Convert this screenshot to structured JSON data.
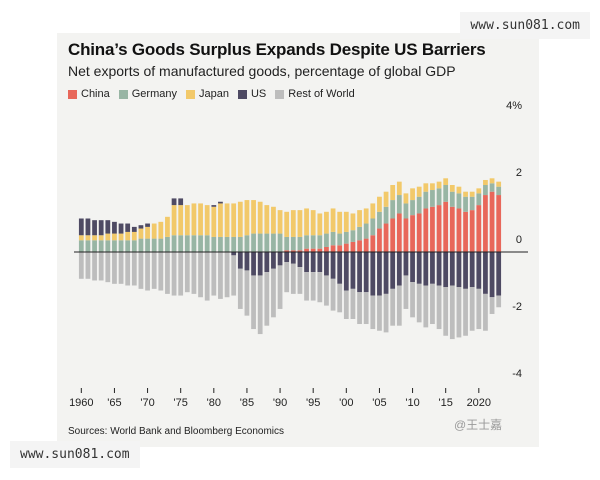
{
  "chart_data": {
    "type": "bar",
    "stacked": true,
    "title": "China’s Goods Surplus Expands Despite US Barriers",
    "subtitle": "Net exports of manufactured goods, percentage of global GDP",
    "source": "Sources: World Bank and Bloomberg Economics",
    "ylim": [
      -4,
      4
    ],
    "y_ticks": [
      "4%",
      "2",
      "0",
      "-2",
      "-4"
    ],
    "x_tick_labels": [
      "1960",
      "'65",
      "'70",
      "'75",
      "'80",
      "'85",
      "'90",
      "'95",
      "'00",
      "'05",
      "'10",
      "'15",
      "2020"
    ],
    "years": [
      1960,
      1961,
      1962,
      1963,
      1964,
      1965,
      1966,
      1967,
      1968,
      1969,
      1970,
      1971,
      1972,
      1973,
      1974,
      1975,
      1976,
      1977,
      1978,
      1979,
      1980,
      1981,
      1982,
      1983,
      1984,
      1985,
      1986,
      1987,
      1988,
      1989,
      1990,
      1991,
      1992,
      1993,
      1994,
      1995,
      1996,
      1997,
      1998,
      1999,
      2000,
      2001,
      2002,
      2003,
      2004,
      2005,
      2006,
      2007,
      2008,
      2009,
      2010,
      2011,
      2012,
      2013,
      2014,
      2015,
      2016,
      2017,
      2018,
      2019,
      2020,
      2021,
      2022,
      2023
    ],
    "series": [
      {
        "name": "China",
        "color": "#e8675a",
        "values": [
          0,
          0,
          0,
          0,
          0,
          0,
          0,
          0,
          0,
          0,
          0,
          0,
          0,
          0,
          0,
          0,
          0,
          0,
          0,
          0,
          0,
          0,
          0,
          0,
          0,
          0,
          0,
          0,
          0,
          0,
          0,
          0.05,
          0.05,
          0.05,
          0.1,
          0.1,
          0.1,
          0.15,
          0.2,
          0.2,
          0.25,
          0.3,
          0.35,
          0.4,
          0.5,
          0.7,
          0.85,
          1.0,
          1.15,
          1.0,
          1.1,
          1.15,
          1.3,
          1.35,
          1.4,
          1.5,
          1.35,
          1.3,
          1.2,
          1.25,
          1.4,
          1.7,
          1.8,
          1.7
        ]
      },
      {
        "name": "Germany",
        "color": "#98b5a4",
        "values": [
          0.35,
          0.35,
          0.35,
          0.35,
          0.35,
          0.35,
          0.35,
          0.35,
          0.35,
          0.4,
          0.4,
          0.4,
          0.4,
          0.45,
          0.5,
          0.5,
          0.5,
          0.5,
          0.5,
          0.5,
          0.45,
          0.45,
          0.45,
          0.45,
          0.45,
          0.5,
          0.55,
          0.55,
          0.55,
          0.55,
          0.55,
          0.4,
          0.4,
          0.4,
          0.4,
          0.4,
          0.4,
          0.4,
          0.4,
          0.35,
          0.35,
          0.35,
          0.4,
          0.45,
          0.5,
          0.5,
          0.5,
          0.55,
          0.55,
          0.45,
          0.45,
          0.5,
          0.5,
          0.5,
          0.5,
          0.5,
          0.45,
          0.45,
          0.45,
          0.4,
          0.35,
          0.3,
          0.25,
          0.25
        ]
      },
      {
        "name": "Japan",
        "color": "#f2c96a",
        "values": [
          0.15,
          0.15,
          0.15,
          0.15,
          0.2,
          0.2,
          0.2,
          0.25,
          0.25,
          0.3,
          0.35,
          0.45,
          0.5,
          0.6,
          0.9,
          0.9,
          0.9,
          0.95,
          0.95,
          0.9,
          0.9,
          1.0,
          1.0,
          1.0,
          1.05,
          1.05,
          1.0,
          0.95,
          0.85,
          0.8,
          0.7,
          0.75,
          0.8,
          0.8,
          0.8,
          0.75,
          0.65,
          0.65,
          0.7,
          0.65,
          0.6,
          0.5,
          0.5,
          0.45,
          0.45,
          0.45,
          0.45,
          0.45,
          0.4,
          0.3,
          0.35,
          0.3,
          0.25,
          0.2,
          0.2,
          0.2,
          0.2,
          0.2,
          0.15,
          0.15,
          0.15,
          0.15,
          0.15,
          0.15
        ]
      },
      {
        "name": "US",
        "color": "#4e4a63",
        "values": [
          0.5,
          0.5,
          0.45,
          0.45,
          0.4,
          0.35,
          0.3,
          0.25,
          0.15,
          0.1,
          0.1,
          0,
          0,
          0,
          0.2,
          0.2,
          0,
          0,
          0,
          0,
          0.05,
          0.05,
          0,
          -0.1,
          -0.5,
          -0.55,
          -0.7,
          -0.7,
          -0.6,
          -0.5,
          -0.4,
          -0.3,
          -0.35,
          -0.45,
          -0.6,
          -0.6,
          -0.6,
          -0.7,
          -0.8,
          -0.95,
          -1.15,
          -1.1,
          -1.2,
          -1.2,
          -1.3,
          -1.3,
          -1.25,
          -1.1,
          -1.0,
          -0.7,
          -0.9,
          -0.95,
          -1.0,
          -0.95,
          -1.0,
          -1.05,
          -1.0,
          -1.05,
          -1.1,
          -1.05,
          -1.1,
          -1.25,
          -1.35,
          -1.3
        ]
      },
      {
        "name": "Rest of World",
        "color": "#bdbdbd",
        "values": [
          -0.8,
          -0.8,
          -0.85,
          -0.85,
          -0.9,
          -0.95,
          -0.95,
          -1.0,
          -1.0,
          -1.1,
          -1.15,
          -1.1,
          -1.15,
          -1.25,
          -1.3,
          -1.3,
          -1.2,
          -1.25,
          -1.35,
          -1.45,
          -1.3,
          -1.4,
          -1.35,
          -1.2,
          -1.2,
          -1.35,
          -1.6,
          -1.75,
          -1.6,
          -1.45,
          -1.3,
          -0.9,
          -0.9,
          -0.8,
          -0.85,
          -0.85,
          -0.9,
          -0.9,
          -0.95,
          -0.85,
          -0.85,
          -0.9,
          -0.95,
          -0.95,
          -1.0,
          -1.05,
          -1.15,
          -1.1,
          -1.2,
          -1.0,
          -1.05,
          -1.15,
          -1.25,
          -1.2,
          -1.3,
          -1.45,
          -1.6,
          -1.5,
          -1.4,
          -1.3,
          -1.2,
          -1.1,
          -0.5,
          -0.35
        ]
      }
    ]
  },
  "watermarks": {
    "top": "www.sun081.com",
    "bottom": "www.sun081.com",
    "logo": "@王士嘉"
  }
}
